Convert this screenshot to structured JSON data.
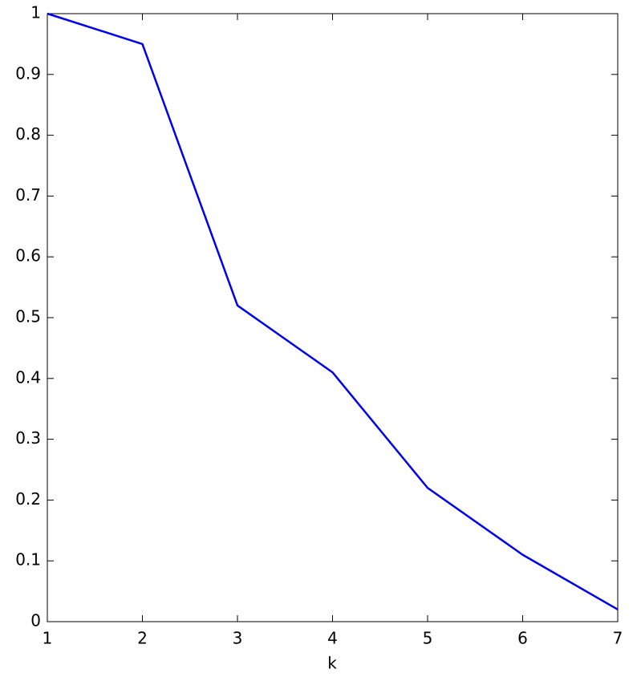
{
  "chart_data": {
    "type": "line",
    "xlabel": "k",
    "x": [
      1,
      2,
      3,
      4,
      5,
      6,
      7
    ],
    "series": [
      {
        "color": "#0000ee",
        "values": [
          1,
          0.95,
          0.52,
          0.41,
          0.22,
          0.11,
          0.02
        ]
      }
    ],
    "xlim": [
      1,
      7
    ],
    "xticks": [
      1,
      2,
      3,
      4,
      5,
      6,
      7
    ],
    "ylim": [
      0,
      1
    ],
    "yticks": [
      0,
      0.1,
      0.2,
      0.3,
      0.4,
      0.5,
      0.6,
      0.7,
      0.8,
      0.9,
      1
    ],
    "grid": false
  }
}
